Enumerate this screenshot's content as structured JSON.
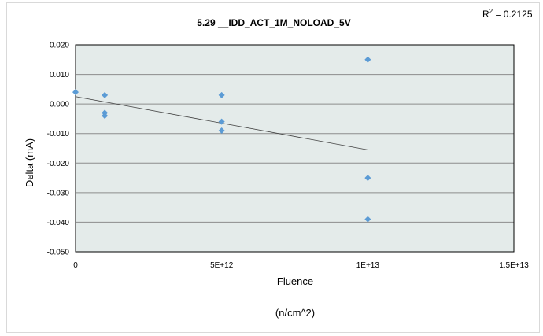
{
  "chart_data": {
    "type": "scatter",
    "title": "5.29 __IDD_ACT_1M_NOLOAD_5V",
    "xlabel": "Fluence",
    "xlabel_sub": "(n/cm^2)",
    "ylabel": "Delta (mA)",
    "annotation": {
      "base": "R",
      "sup": "2",
      "text": " = 0.2125"
    },
    "xlim": [
      0,
      15000000000000
    ],
    "ylim": [
      -0.05,
      0.02
    ],
    "x_ticks": [
      {
        "value": 0,
        "label": "0"
      },
      {
        "value": 5000000000000,
        "label": "5E+12"
      },
      {
        "value": 10000000000000,
        "label": "1E+13"
      },
      {
        "value": 15000000000000,
        "label": "1.5E+13"
      }
    ],
    "y_ticks": [
      {
        "value": 0.02,
        "label": "0.020"
      },
      {
        "value": 0.01,
        "label": "0.010"
      },
      {
        "value": 0.0,
        "label": "0.000"
      },
      {
        "value": -0.01,
        "label": "-0.010"
      },
      {
        "value": -0.02,
        "label": "-0.020"
      },
      {
        "value": -0.03,
        "label": "-0.030"
      },
      {
        "value": -0.04,
        "label": "-0.040"
      },
      {
        "value": -0.05,
        "label": "-0.050"
      }
    ],
    "grid": {
      "horizontal": true,
      "vertical": false
    },
    "plot_background": "#e4ebea",
    "marker_color": "#5b9bd5",
    "trendline_color": "#404040",
    "points": [
      {
        "x": 0,
        "y": 0.004
      },
      {
        "x": 1000000000000,
        "y": 0.003
      },
      {
        "x": 1000000000000,
        "y": -0.003
      },
      {
        "x": 1000000000000,
        "y": -0.004
      },
      {
        "x": 5000000000000,
        "y": 0.003
      },
      {
        "x": 5000000000000,
        "y": -0.006
      },
      {
        "x": 5000000000000,
        "y": -0.009
      },
      {
        "x": 10000000000000,
        "y": 0.015
      },
      {
        "x": 10000000000000,
        "y": -0.025
      },
      {
        "x": 10000000000000,
        "y": -0.039
      }
    ],
    "trendline": {
      "type": "linear",
      "from": {
        "x": 0,
        "y": 0.0025
      },
      "to": {
        "x": 10000000000000,
        "y": -0.0155
      }
    }
  }
}
